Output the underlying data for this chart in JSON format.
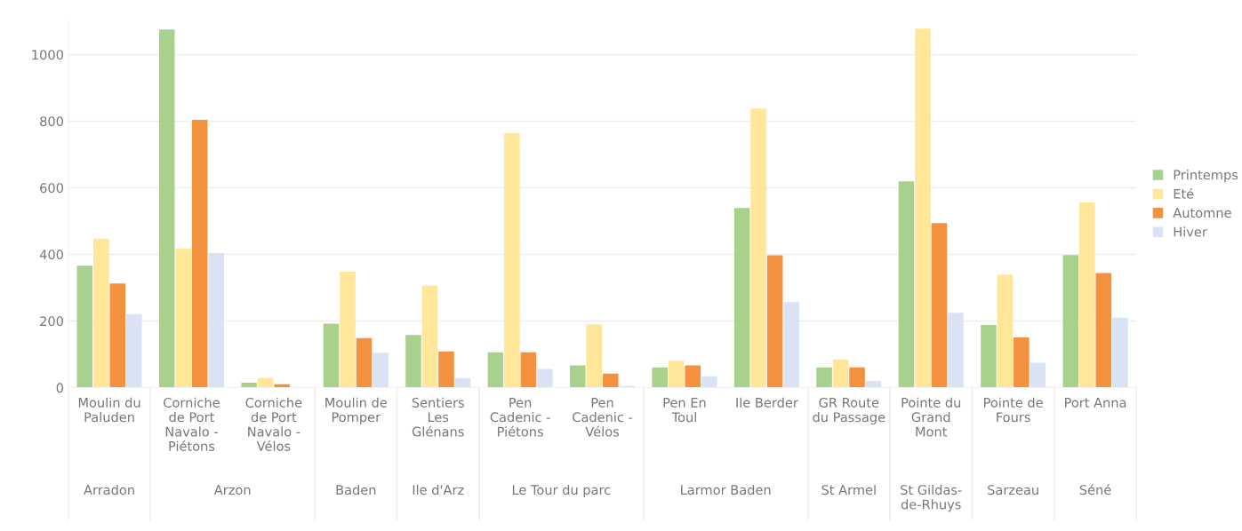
{
  "chart_data": {
    "type": "bar",
    "categories": [
      "Moulin du\nPaluden",
      "Corniche\nde Port\nNavalo -\nPiétons",
      "Corniche\nde Port\nNavalo -\nVélos",
      "Moulin de\nPomper",
      "Sentiers\nLes\nGlénans",
      "Pen\nCadenic -\nPiétons",
      "Pen\nCadenic -\nVélos",
      "Pen En\nToul",
      "Ile Berder",
      "GR Route\ndu Passage",
      "Pointe du\nGrand\nMont",
      "Pointe de\nFours",
      "Port Anna"
    ],
    "series": [
      {
        "name": "Printemps",
        "color": "#a9d18e",
        "values": [
          366,
          1075,
          15,
          192,
          158,
          106,
          67,
          61,
          539,
          61,
          619,
          188,
          398
        ]
      },
      {
        "name": "Eté",
        "color": "#ffe699",
        "values": [
          447,
          418,
          29,
          348,
          306,
          764,
          190,
          81,
          838,
          85,
          1078,
          339,
          556
        ]
      },
      {
        "name": "Automne",
        "color": "#f4913e",
        "values": [
          313,
          804,
          10,
          149,
          109,
          106,
          42,
          67,
          397,
          61,
          494,
          151,
          344
        ]
      },
      {
        "name": "Hiver",
        "color": "#dae3f3",
        "values": [
          221,
          404,
          null,
          105,
          29,
          56,
          5,
          34,
          257,
          20,
          225,
          75,
          210
        ]
      }
    ],
    "ylim": [
      0,
      1100
    ],
    "yticks": [
      0,
      200,
      400,
      600,
      800,
      1000
    ],
    "grid": "y",
    "legend": "right",
    "annotations": [
      "Arradon",
      "Arzon",
      "Baden",
      "Ile d'Arz",
      "Le Tour du parc",
      "Larmor Baden",
      "St Armel",
      "St Gildas-\nde-Rhuys",
      "Sarzeau",
      "Séné"
    ]
  }
}
